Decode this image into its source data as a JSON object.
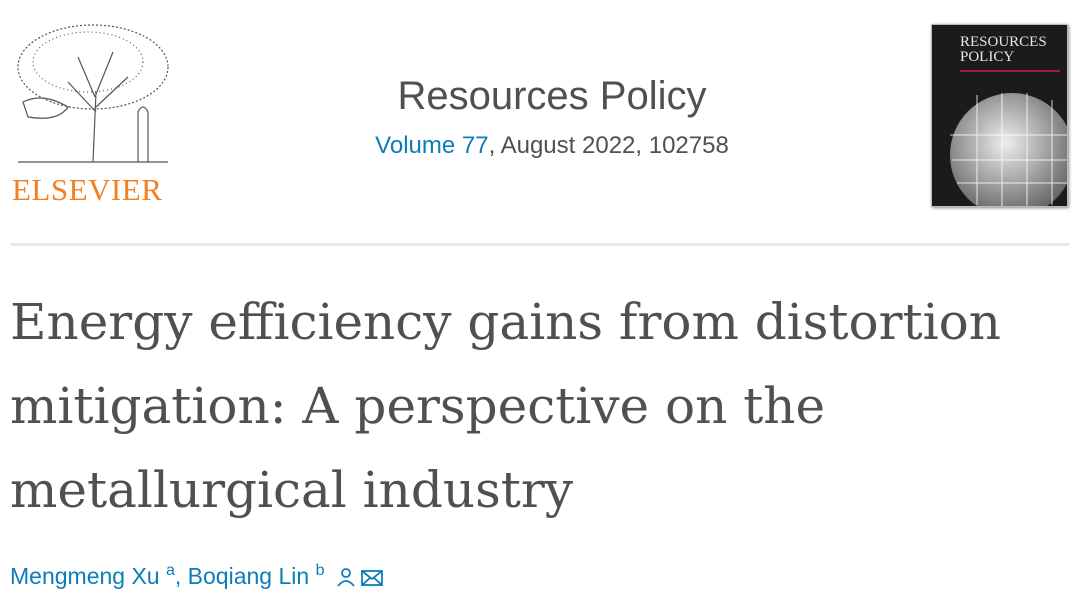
{
  "publisher": {
    "logo_text": "ELSEVIER"
  },
  "journal": {
    "title": "Resources Policy",
    "volume_link": "Volume 77",
    "issue_info": ", August 2022, 102758",
    "cover_title": "RESOURCES POLICY"
  },
  "article": {
    "title": "Energy efficiency gains from distortion mitigation: A perspective on the metallurgical industry"
  },
  "authors": [
    {
      "name": "Mengmeng Xu",
      "affiliation": "a"
    },
    {
      "name": "Boqiang Lin",
      "affiliation": "b",
      "icons": [
        "person-icon",
        "envelope-icon"
      ]
    }
  ],
  "author_separator": ", ",
  "colors": {
    "link": "#0c7dbb",
    "text": "#505050",
    "brand": "#f27f22"
  }
}
